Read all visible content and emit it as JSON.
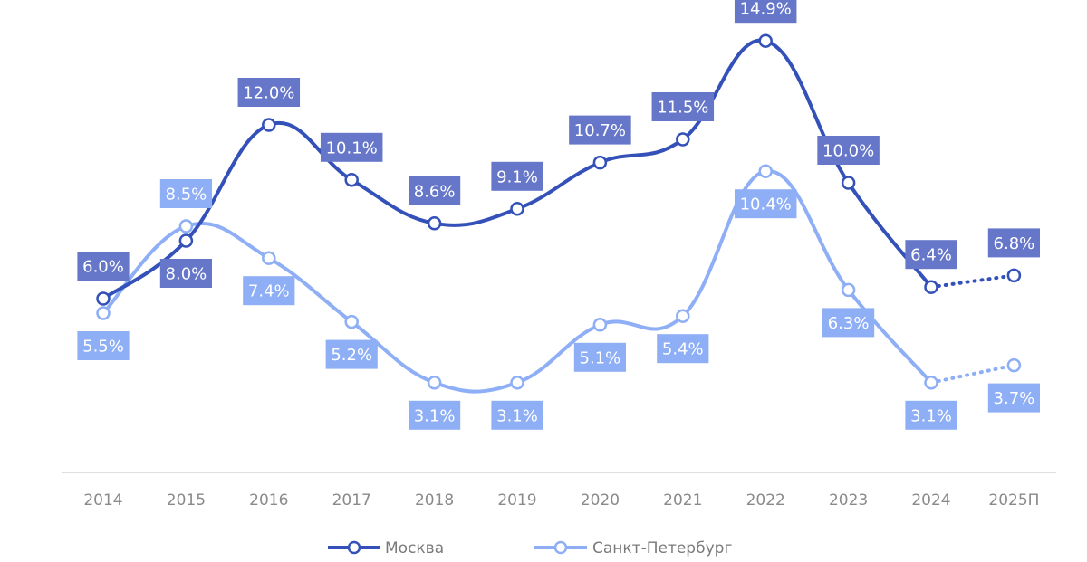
{
  "chart_data": {
    "type": "line",
    "title": "",
    "xlabel": "",
    "ylabel": "",
    "categories": [
      "2014",
      "2015",
      "2016",
      "2017",
      "2018",
      "2019",
      "2020",
      "2021",
      "2022",
      "2023",
      "2024",
      "2025П"
    ],
    "series": [
      {
        "name": "Москва",
        "color": "#3451B9",
        "label_bg": "#6677C9",
        "values": [
          6.0,
          8.0,
          12.0,
          10.1,
          8.6,
          9.1,
          10.7,
          11.5,
          14.9,
          10.0,
          6.4,
          6.8
        ],
        "labels": [
          "6.0%",
          "8.0%",
          "12.0%",
          "10.1%",
          "8.6%",
          "9.1%",
          "10.7%",
          "11.5%",
          "14.9%",
          "10.0%",
          "6.4%",
          "6.8%"
        ],
        "forecast_from_index": 10
      },
      {
        "name": "Санкт-Петербург",
        "color": "#8EAEF6",
        "label_bg": "#8EAEF6",
        "values": [
          5.5,
          8.5,
          7.4,
          5.2,
          3.1,
          3.1,
          5.1,
          5.4,
          10.4,
          6.3,
          3.1,
          3.7
        ],
        "labels": [
          "5.5%",
          "8.5%",
          "7.4%",
          "5.2%",
          "3.1%",
          "3.1%",
          "5.1%",
          "5.4%",
          "10.4%",
          "6.3%",
          "3.1%",
          "3.7%"
        ],
        "forecast_from_index": 10
      }
    ],
    "ylim": [
      0,
      16
    ],
    "grid": false,
    "legend_position": "bottom"
  }
}
